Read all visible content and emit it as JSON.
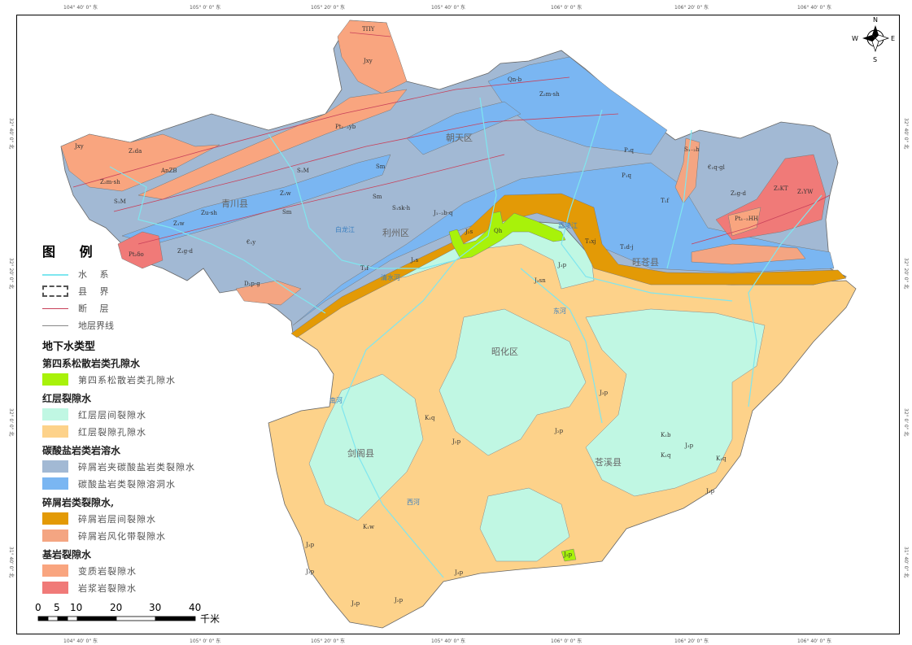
{
  "coords": {
    "top": [
      "104° 40' 0\" 东",
      "105° 0' 0\" 东",
      "105° 20' 0\" 东",
      "105° 40' 0\" 东",
      "106° 0' 0\" 东",
      "106° 20' 0\" 东",
      "106° 40' 0\" 东"
    ],
    "bottom": [
      "104° 40' 0\" 东",
      "105° 0' 0\" 东",
      "105° 20' 0\" 东",
      "105° 40' 0\" 东",
      "106° 0' 0\" 东",
      "106° 20' 0\" 东",
      "106° 40' 0\" 东"
    ],
    "left": [
      "32° 40' 0\" 北",
      "32° 20' 0\" 北",
      "32° 0' 0\" 北",
      "31° 40' 0\" 北"
    ],
    "right": [
      "32° 40' 0\" 北",
      "32° 20' 0\" 北",
      "32° 0' 0\" 北",
      "31° 40' 0\" 北"
    ]
  },
  "compass": {
    "n": "N",
    "s": "S",
    "e": "E",
    "w": "W"
  },
  "counties": [
    "青川县",
    "朝天区",
    "利州区",
    "旺苍县",
    "昭化区",
    "剑阁县",
    "苍溪县"
  ],
  "formations": [
    "TΠY",
    "Jxy",
    "Qn-b",
    "Z₂m-sh",
    "Pt₂₋₃yb",
    "Jxy",
    "Z₁da",
    "AnZB",
    "Z₂m-sh",
    "S₁M",
    "S₁M",
    "Sm",
    "Sm",
    "Z₁w",
    "Zu-sh",
    "Sm",
    "Z₁w",
    "Z₁g-d",
    "Pt₂δo",
    "€₁y",
    "S₁sk-h",
    "J₁₋₂b-q",
    "J₂s",
    "Qh",
    "T₁xj",
    "T₁d-j",
    "P₁q",
    "P₁q",
    "S₁₋₂h",
    "€₁q-gl",
    "Z₂g-d",
    "Z₁KT",
    "Z₁YW",
    "Pt₁₋₂HH",
    "T₁f",
    "T₁f",
    "J₂s",
    "J₃sn",
    "J₃p",
    "K₁q",
    "J₂p",
    "J₂p",
    "J₃p",
    "K₁b",
    "K₁q",
    "J₃p",
    "K₁q",
    "J₃p",
    "K₁w",
    "J₃p",
    "J₃p",
    "J₃p",
    "J₂p",
    "J₃p",
    "J₂p",
    "D₂p-g"
  ],
  "rivers": [
    "嘉陵江",
    "白龙江",
    "清水河",
    "南河",
    "东河",
    "西河"
  ],
  "legend": {
    "title": "图 例",
    "lines": [
      {
        "label": "水 系",
        "color": "#7fe6ef"
      },
      {
        "label": "县 界",
        "color": "#555555"
      },
      {
        "label": "断 层",
        "color": "#c8405a"
      },
      {
        "label": "地层界线",
        "color": "#888888"
      }
    ],
    "groundwater_title": "地下水类型",
    "groups": [
      {
        "title": "第四系松散岩类孔隙水",
        "items": [
          {
            "label": "第四系松散岩类孔隙水",
            "color": "#a8f20a"
          }
        ]
      },
      {
        "title": "红层裂隙水",
        "items": [
          {
            "label": "红层层间裂隙水",
            "color": "#c0f7e3"
          },
          {
            "label": "红层裂隙孔隙水",
            "color": "#fdd28a"
          }
        ]
      },
      {
        "title": "碳酸盐岩类岩溶水",
        "items": [
          {
            "label": "碎屑岩夹碳酸盐岩类裂隙水",
            "color": "#a2b9d4"
          },
          {
            "label": "碳酸盐岩类裂隙溶洞水",
            "color": "#7ab6f2"
          }
        ]
      },
      {
        "title": "碎屑岩类裂隙水,",
        "items": [
          {
            "label": "碎屑岩层间裂隙水",
            "color": "#e39a06"
          },
          {
            "label": "碎屑岩风化带裂隙水",
            "color": "#f4a582"
          }
        ]
      },
      {
        "title": "基岩裂隙水",
        "items": [
          {
            "label": "变质岩裂隙水",
            "color": "#f9a57f"
          },
          {
            "label": "岩浆岩裂隙水",
            "color": "#f07a78"
          }
        ]
      }
    ]
  },
  "scale": {
    "ticks": [
      "0",
      "5",
      "10",
      "20",
      "30",
      "40"
    ],
    "unit": "千米"
  }
}
